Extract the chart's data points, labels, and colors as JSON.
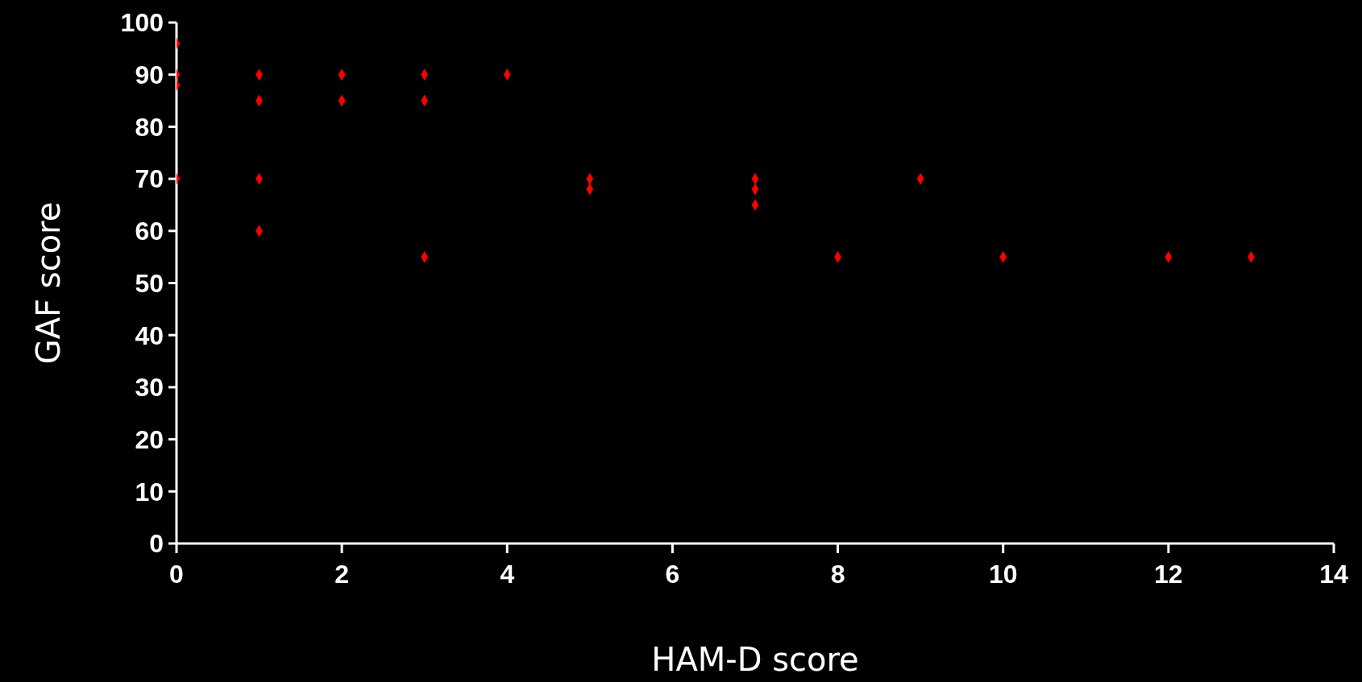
{
  "chart_data": {
    "type": "scatter",
    "xlabel": "HAM-D score",
    "ylabel": "GAF score",
    "x": [
      0,
      0,
      0,
      0,
      1,
      1,
      1,
      1,
      2,
      2,
      3,
      3,
      3,
      4,
      5,
      5,
      7,
      7,
      7,
      8,
      9,
      10,
      12,
      13
    ],
    "series": [
      {
        "color": "#ff0000",
        "values": [
          96,
          90,
          88,
          70,
          90,
          85,
          70,
          60,
          90,
          85,
          90,
          85,
          55,
          90,
          70,
          68,
          70,
          68,
          65,
          55,
          70,
          55,
          55,
          55
        ]
      }
    ],
    "xlim": [
      0,
      14
    ],
    "xticks": [
      0,
      2,
      4,
      6,
      8,
      10,
      12,
      14
    ],
    "ylim": [
      0,
      100
    ],
    "yticks": [
      0,
      10,
      20,
      30,
      40,
      50,
      60,
      70,
      80,
      90,
      100
    ],
    "grid": false,
    "legend": false,
    "marker": "diamond"
  }
}
